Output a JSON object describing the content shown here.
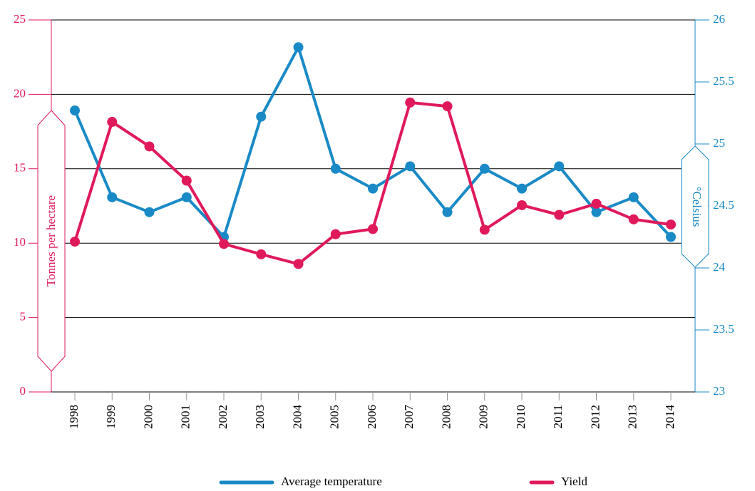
{
  "chart_data": {
    "type": "line",
    "y_label": "Tonnes per hectare",
    "y2_label": "°Celsius",
    "categories": [
      "1998",
      "1999",
      "2000",
      "2001",
      "2002",
      "2003",
      "2004",
      "2005",
      "2006",
      "2007",
      "2008",
      "2009",
      "2010",
      "2011",
      "2012",
      "2013",
      "2014"
    ],
    "series": [
      {
        "name": "Average temperature",
        "color": "#1a8ac6",
        "axis": "y2",
        "values": [
          25.27,
          24.57,
          24.45,
          24.57,
          24.25,
          25.22,
          25.78,
          24.8,
          24.64,
          24.82,
          24.45,
          24.8,
          24.64,
          24.82,
          24.45,
          24.57,
          24.25
        ]
      },
      {
        "name": "Yield",
        "color": "#e0195a",
        "axis": "y",
        "values": [
          10.1,
          18.15,
          16.5,
          14.2,
          9.95,
          9.25,
          8.6,
          10.6,
          10.95,
          19.45,
          19.2,
          10.9,
          12.55,
          11.9,
          12.65,
          11.6,
          11.25
        ]
      }
    ],
    "ylim": [
      0,
      25
    ],
    "yticks": [
      0,
      5,
      10,
      15,
      20,
      25
    ],
    "y2lim": [
      23,
      26
    ],
    "y2ticks": [
      23,
      23.5,
      24,
      24.5,
      25,
      25.5,
      26
    ],
    "grid": true
  }
}
